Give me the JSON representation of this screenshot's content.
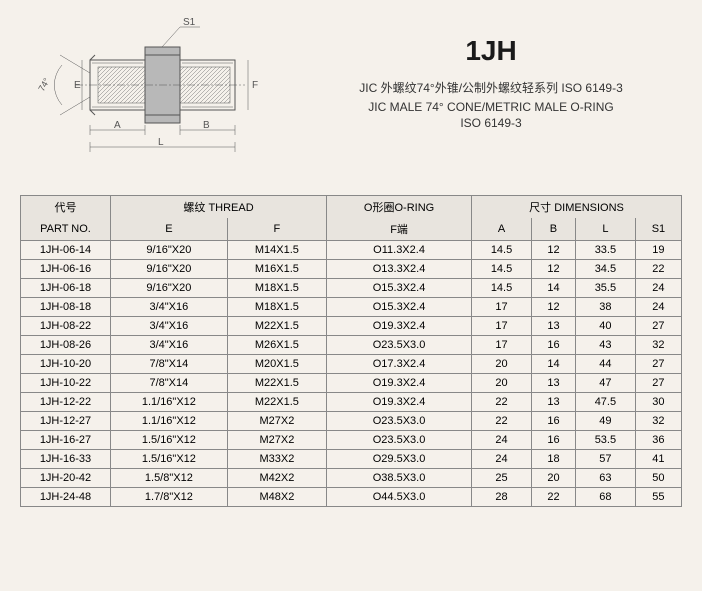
{
  "product": {
    "code": "1JH",
    "subtitle_cn": "JIC 外螺纹74°外锥/公制外螺纹轻系列 ISO 6149-3",
    "subtitle_en1": "JIC MALE 74° CONE/METRIC MALE O-RING",
    "subtitle_en2": "ISO 6149-3"
  },
  "diagram": {
    "s1_label": "S1",
    "angle_label": "74°",
    "e_label": "E",
    "f_label": "F",
    "a_label": "A",
    "b_label": "B",
    "l_label": "L"
  },
  "table": {
    "headers": {
      "part_no_cn": "代号",
      "part_no_en": "PART NO.",
      "thread_cn": "螺纹",
      "thread_en": "THREAD",
      "oring_cn": "O形圈",
      "oring_en": "O-RING",
      "dimensions_cn": "尺寸",
      "dimensions_en": "DIMENSIONS",
      "e": "E",
      "f": "F",
      "f_end": "F端",
      "a": "A",
      "b": "B",
      "l": "L",
      "s1": "S1"
    },
    "rows": [
      {
        "part": "1JH-06-14",
        "e": "9/16\"X20",
        "f": "M14X1.5",
        "oring": "O11.3X2.4",
        "a": "14.5",
        "b": "12",
        "l": "33.5",
        "s1": "19"
      },
      {
        "part": "1JH-06-16",
        "e": "9/16\"X20",
        "f": "M16X1.5",
        "oring": "O13.3X2.4",
        "a": "14.5",
        "b": "12",
        "l": "34.5",
        "s1": "22"
      },
      {
        "part": "1JH-06-18",
        "e": "9/16\"X20",
        "f": "M18X1.5",
        "oring": "O15.3X2.4",
        "a": "14.5",
        "b": "14",
        "l": "35.5",
        "s1": "24"
      },
      {
        "part": "1JH-08-18",
        "e": "3/4\"X16",
        "f": "M18X1.5",
        "oring": "O15.3X2.4",
        "a": "17",
        "b": "12",
        "l": "38",
        "s1": "24"
      },
      {
        "part": "1JH-08-22",
        "e": "3/4\"X16",
        "f": "M22X1.5",
        "oring": "O19.3X2.4",
        "a": "17",
        "b": "13",
        "l": "40",
        "s1": "27"
      },
      {
        "part": "1JH-08-26",
        "e": "3/4\"X16",
        "f": "M26X1.5",
        "oring": "O23.5X3.0",
        "a": "17",
        "b": "16",
        "l": "43",
        "s1": "32"
      },
      {
        "part": "1JH-10-20",
        "e": "7/8\"X14",
        "f": "M20X1.5",
        "oring": "O17.3X2.4",
        "a": "20",
        "b": "14",
        "l": "44",
        "s1": "27"
      },
      {
        "part": "1JH-10-22",
        "e": "7/8\"X14",
        "f": "M22X1.5",
        "oring": "O19.3X2.4",
        "a": "20",
        "b": "13",
        "l": "47",
        "s1": "27"
      },
      {
        "part": "1JH-12-22",
        "e": "1.1/16\"X12",
        "f": "M22X1.5",
        "oring": "O19.3X2.4",
        "a": "22",
        "b": "13",
        "l": "47.5",
        "s1": "30"
      },
      {
        "part": "1JH-12-27",
        "e": "1.1/16\"X12",
        "f": "M27X2",
        "oring": "O23.5X3.0",
        "a": "22",
        "b": "16",
        "l": "49",
        "s1": "32"
      },
      {
        "part": "1JH-16-27",
        "e": "1.5/16\"X12",
        "f": "M27X2",
        "oring": "O23.5X3.0",
        "a": "24",
        "b": "16",
        "l": "53.5",
        "s1": "36"
      },
      {
        "part": "1JH-16-33",
        "e": "1.5/16\"X12",
        "f": "M33X2",
        "oring": "O29.5X3.0",
        "a": "24",
        "b": "18",
        "l": "57",
        "s1": "41"
      },
      {
        "part": "1JH-20-42",
        "e": "1.5/8\"X12",
        "f": "M42X2",
        "oring": "O38.5X3.0",
        "a": "25",
        "b": "20",
        "l": "63",
        "s1": "50"
      },
      {
        "part": "1JH-24-48",
        "e": "1.7/8\"X12",
        "f": "M48X2",
        "oring": "O44.5X3.0",
        "a": "28",
        "b": "22",
        "l": "68",
        "s1": "55"
      }
    ]
  }
}
